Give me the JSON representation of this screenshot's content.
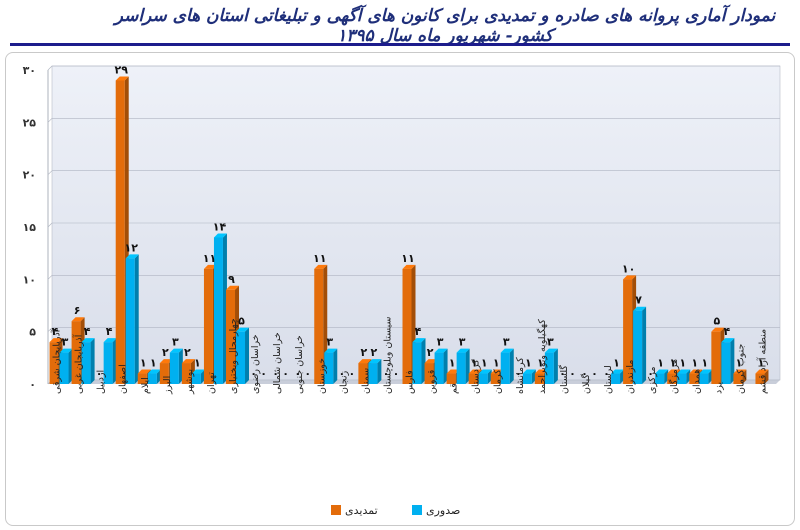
{
  "title": "نمودار آماری پروانه های صادره و تمدیدی برای کانون های آگهی و تبلیغاتی استان های سراسر کشور- شهریور ماه سال ۱۳۹۵",
  "colors": {
    "extension": "#e36c0a",
    "issued": "#00b0f0",
    "plot_bg": "#dde2ee",
    "title_rule": "#1c1c8c"
  },
  "chart_data": {
    "type": "bar",
    "ylim": [
      0,
      30
    ],
    "yticks": [
      "۰",
      "۵",
      "۱۰",
      "۱۵",
      "۲۰",
      "۲۵",
      "۳۰"
    ],
    "grid": true,
    "legend_position": "bottom",
    "categories": [
      "آذربایجان شرقی",
      "آذربایجان غربی",
      "اردبیل",
      "اصفهان",
      "ایلام",
      "البرز",
      "بوشهر",
      "تهران",
      "چهارمحال وبختیاری",
      "خراسان رضوی",
      "خراسان شمالی",
      "خراسان جنوبی",
      "خوزستان",
      "زنجان",
      "سمنان",
      "سیستان وبلوچستان",
      "فارس",
      "قزوین",
      "قم",
      "کردستان",
      "کرمان",
      "کرمانشاه",
      "کهگیلویه وبویراحمد",
      "گلستان",
      "گیلان",
      "لرستان",
      "مازندران",
      "مرکزی",
      "هرمزگان",
      "همدان",
      "یزد",
      "جنوب کرمان",
      "منطقه آزاد قشم"
    ],
    "series": [
      {
        "name": "تمدیدی",
        "color": "#e36c0a",
        "values": [
          4,
          6,
          0,
          29,
          1,
          2,
          2,
          11,
          9,
          0,
          0,
          0,
          11,
          0,
          2,
          0,
          11,
          2,
          1,
          1,
          1,
          0,
          1,
          0,
          0,
          0,
          10,
          0,
          1,
          1,
          5,
          1,
          1
        ],
        "labels": [
          "۴",
          "۶",
          "۰",
          "۲۹",
          "۱",
          "۲",
          "۲",
          "۱۱",
          "۹",
          "۰",
          "۰",
          "۰",
          "۱۱",
          "۰",
          "۲",
          "۰",
          "۱۱",
          "۲",
          "۱",
          "۱",
          "۱",
          "۰",
          "۱",
          "۰",
          "۰",
          "۰",
          "۱۰",
          "۰",
          "۱",
          "۱",
          "۵",
          "۱",
          "۱"
        ]
      },
      {
        "name": "صدوری",
        "color": "#00b0f0",
        "values": [
          3,
          4,
          4,
          12,
          1,
          3,
          1,
          14,
          5,
          0,
          0,
          0,
          3,
          0,
          2,
          0,
          4,
          3,
          3,
          1,
          3,
          1,
          3,
          0,
          0,
          1,
          7,
          1,
          1,
          1,
          4,
          0,
          0
        ],
        "labels": [
          "۳",
          "۴",
          "۴",
          "۱۲",
          "۱",
          "۳",
          "۱",
          "۱۴",
          "۵",
          "۰",
          "۰",
          "۰",
          "۳",
          "۰",
          "۲",
          "۰",
          "۴",
          "۳",
          "۳",
          "۱",
          "۳",
          "۱",
          "۳",
          "۰",
          "۰",
          "۱",
          "۷",
          "۱",
          "۱",
          "۱",
          "۴",
          "",
          ""
        ]
      }
    ]
  }
}
